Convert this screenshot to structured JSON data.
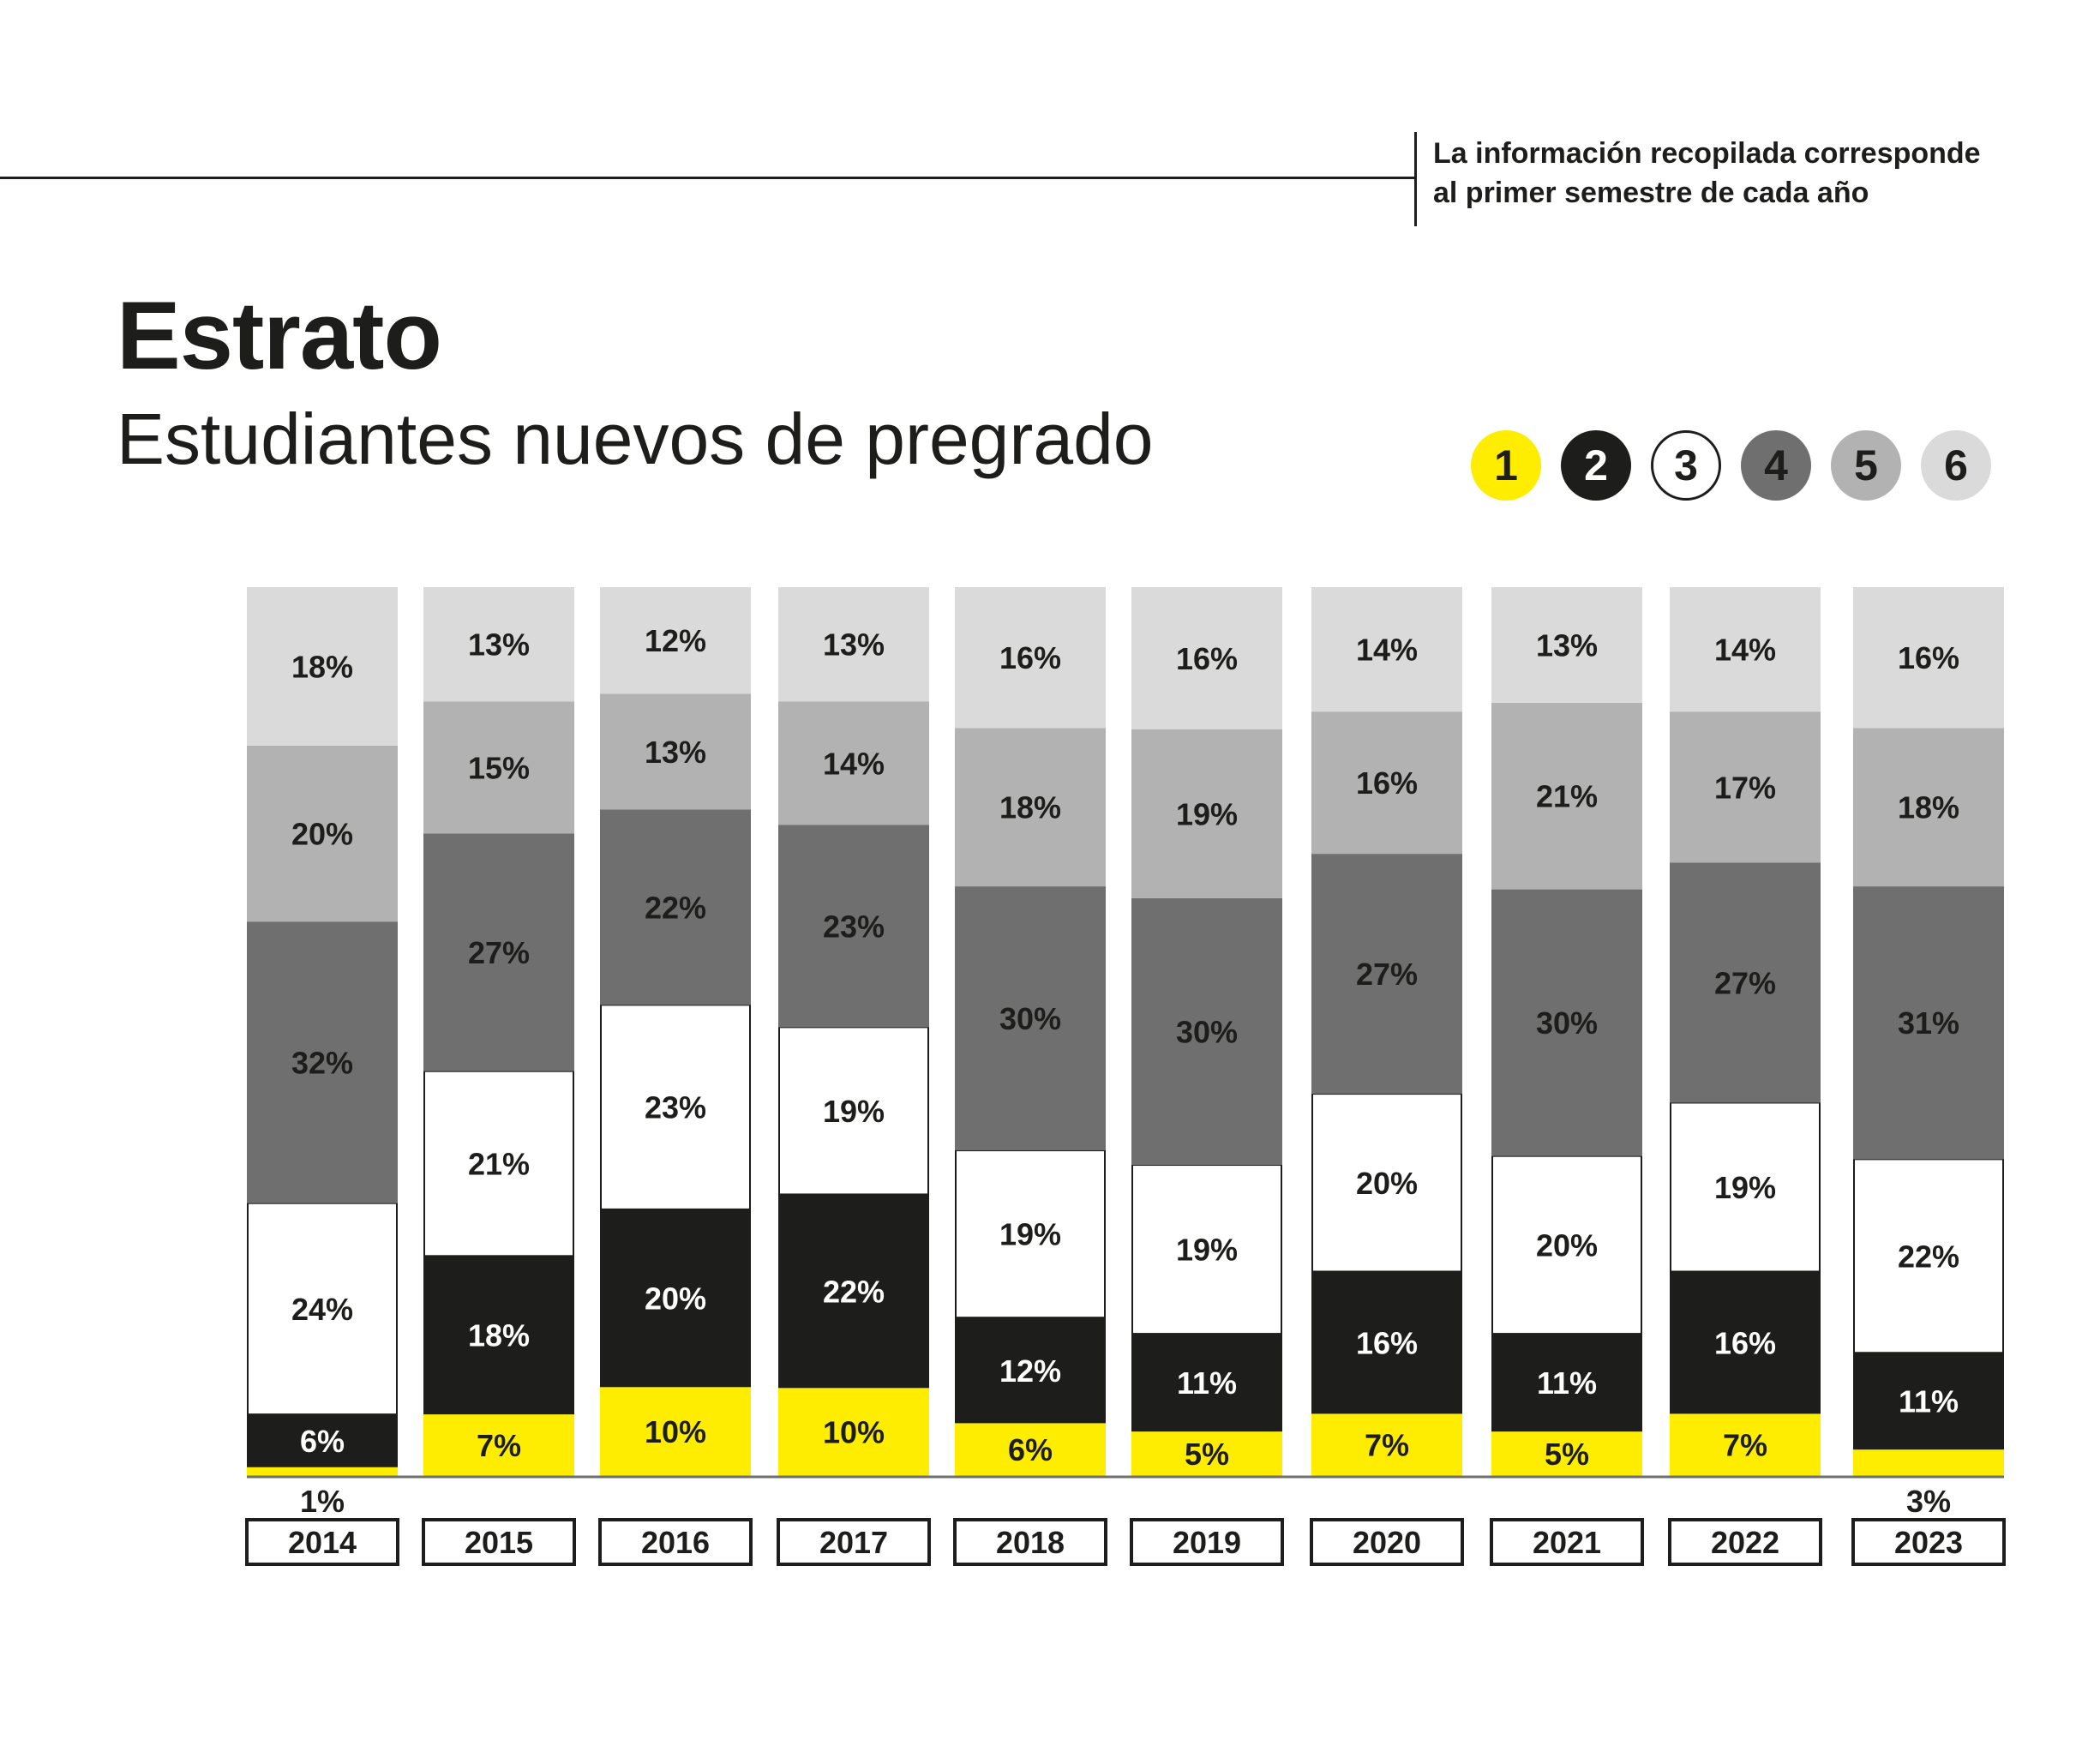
{
  "header": {
    "note_line1": "La información recopilada corresponde",
    "note_line2": "al primer semestre de cada año"
  },
  "title": "Estrato",
  "subtitle": "Estudiantes nuevos de pregrado",
  "legend": [
    {
      "label": "1",
      "fill": "#ffed00",
      "text": "#1d1d1b",
      "stroke": "none"
    },
    {
      "label": "2",
      "fill": "#1d1d1b",
      "text": "#ffffff",
      "stroke": "none"
    },
    {
      "label": "3",
      "fill": "#ffffff",
      "text": "#1d1d1b",
      "stroke": "#1d1d1b"
    },
    {
      "label": "4",
      "fill": "#6f6f6f",
      "text": "#1d1d1b",
      "stroke": "none"
    },
    {
      "label": "5",
      "fill": "#b2b2b2",
      "text": "#1d1d1b",
      "stroke": "none"
    },
    {
      "label": "6",
      "fill": "#dadada",
      "text": "#1d1d1b",
      "stroke": "none"
    }
  ],
  "chart_data": {
    "type": "bar",
    "stacked": true,
    "normalized_percent": true,
    "title": "Estrato",
    "subtitle": "Estudiantes nuevos de pregrado",
    "xlabel": "",
    "ylabel": "",
    "ylim": [
      0,
      100
    ],
    "grid": false,
    "legend_position": "top-right",
    "categories": [
      "2014",
      "2015",
      "2016",
      "2017",
      "2018",
      "2019",
      "2020",
      "2021",
      "2022",
      "2023"
    ],
    "series": [
      {
        "name": "1",
        "color": "#ffed00",
        "label_color": "#1d1d1b",
        "values": [
          1,
          7,
          10,
          10,
          6,
          5,
          7,
          5,
          7,
          3
        ]
      },
      {
        "name": "2",
        "color": "#1d1d1b",
        "label_color": "#ffffff",
        "values": [
          6,
          18,
          20,
          22,
          12,
          11,
          16,
          11,
          16,
          11
        ]
      },
      {
        "name": "3",
        "color": "#ffffff",
        "label_color": "#1d1d1b",
        "values": [
          24,
          21,
          23,
          19,
          19,
          19,
          20,
          20,
          19,
          22
        ]
      },
      {
        "name": "4",
        "color": "#6f6f6f",
        "label_color": "#1d1d1b",
        "values": [
          32,
          27,
          22,
          23,
          30,
          30,
          27,
          30,
          27,
          31
        ]
      },
      {
        "name": "5",
        "color": "#b2b2b2",
        "label_color": "#1d1d1b",
        "values": [
          20,
          15,
          13,
          14,
          18,
          19,
          16,
          21,
          17,
          18
        ]
      },
      {
        "name": "6",
        "color": "#dadada",
        "label_color": "#1d1d1b",
        "values": [
          18,
          13,
          12,
          13,
          16,
          16,
          14,
          13,
          14,
          16
        ]
      }
    ],
    "outside_labels_threshold": 4
  }
}
